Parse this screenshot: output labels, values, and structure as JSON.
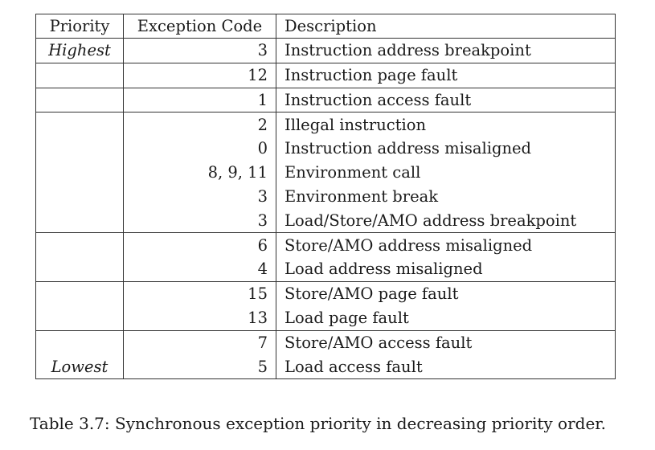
{
  "table": {
    "headers": {
      "priority": "Priority",
      "code": "Exception Code",
      "description": "Description"
    },
    "rows": [
      {
        "priority": "Highest",
        "code": "3",
        "description": "Instruction address breakpoint",
        "group_start": true
      },
      {
        "priority": "",
        "code": "12",
        "description": "Instruction page fault",
        "group_start": true
      },
      {
        "priority": "",
        "code": "1",
        "description": "Instruction access fault",
        "group_start": true
      },
      {
        "priority": "",
        "code": "2",
        "description": "Illegal instruction",
        "group_start": true
      },
      {
        "priority": "",
        "code": "0",
        "description": "Instruction address misaligned",
        "group_start": false
      },
      {
        "priority": "",
        "code": "8, 9, 11",
        "description": "Environment call",
        "group_start": false
      },
      {
        "priority": "",
        "code": "3",
        "description": "Environment break",
        "group_start": false
      },
      {
        "priority": "",
        "code": "3",
        "description": "Load/Store/AMO address breakpoint",
        "group_start": false
      },
      {
        "priority": "",
        "code": "6",
        "description": "Store/AMO address misaligned",
        "group_start": true
      },
      {
        "priority": "",
        "code": "4",
        "description": "Load address misaligned",
        "group_start": false
      },
      {
        "priority": "",
        "code": "15",
        "description": "Store/AMO page fault",
        "group_start": true
      },
      {
        "priority": "",
        "code": "13",
        "description": "Load page fault",
        "group_start": false
      },
      {
        "priority": "",
        "code": "7",
        "description": "Store/AMO access fault",
        "group_start": true
      },
      {
        "priority": "Lowest",
        "code": "5",
        "description": "Load access fault",
        "group_start": false
      }
    ]
  },
  "caption": "Table 3.7: Synchronous exception priority in decreasing priority order."
}
